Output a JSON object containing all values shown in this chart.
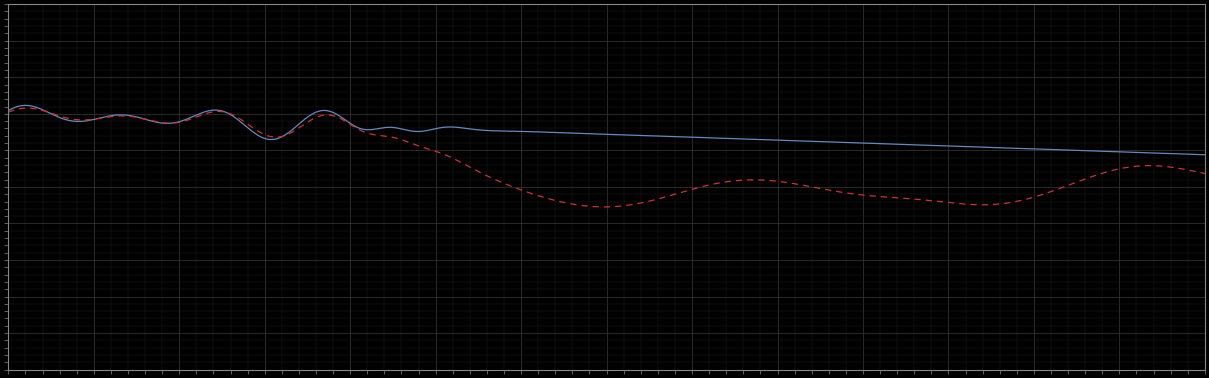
{
  "background_color": "#000000",
  "plot_bg_color": "#000000",
  "grid_color": "#3a3a3a",
  "line1_color": "#6688bb",
  "line2_color": "#cc3333",
  "figsize": [
    12.09,
    3.78
  ],
  "dpi": 100,
  "xlim": [
    0,
    1400
  ],
  "ylim": [
    0,
    10
  ],
  "spine_color": "#888888",
  "tick_color": "#888888"
}
